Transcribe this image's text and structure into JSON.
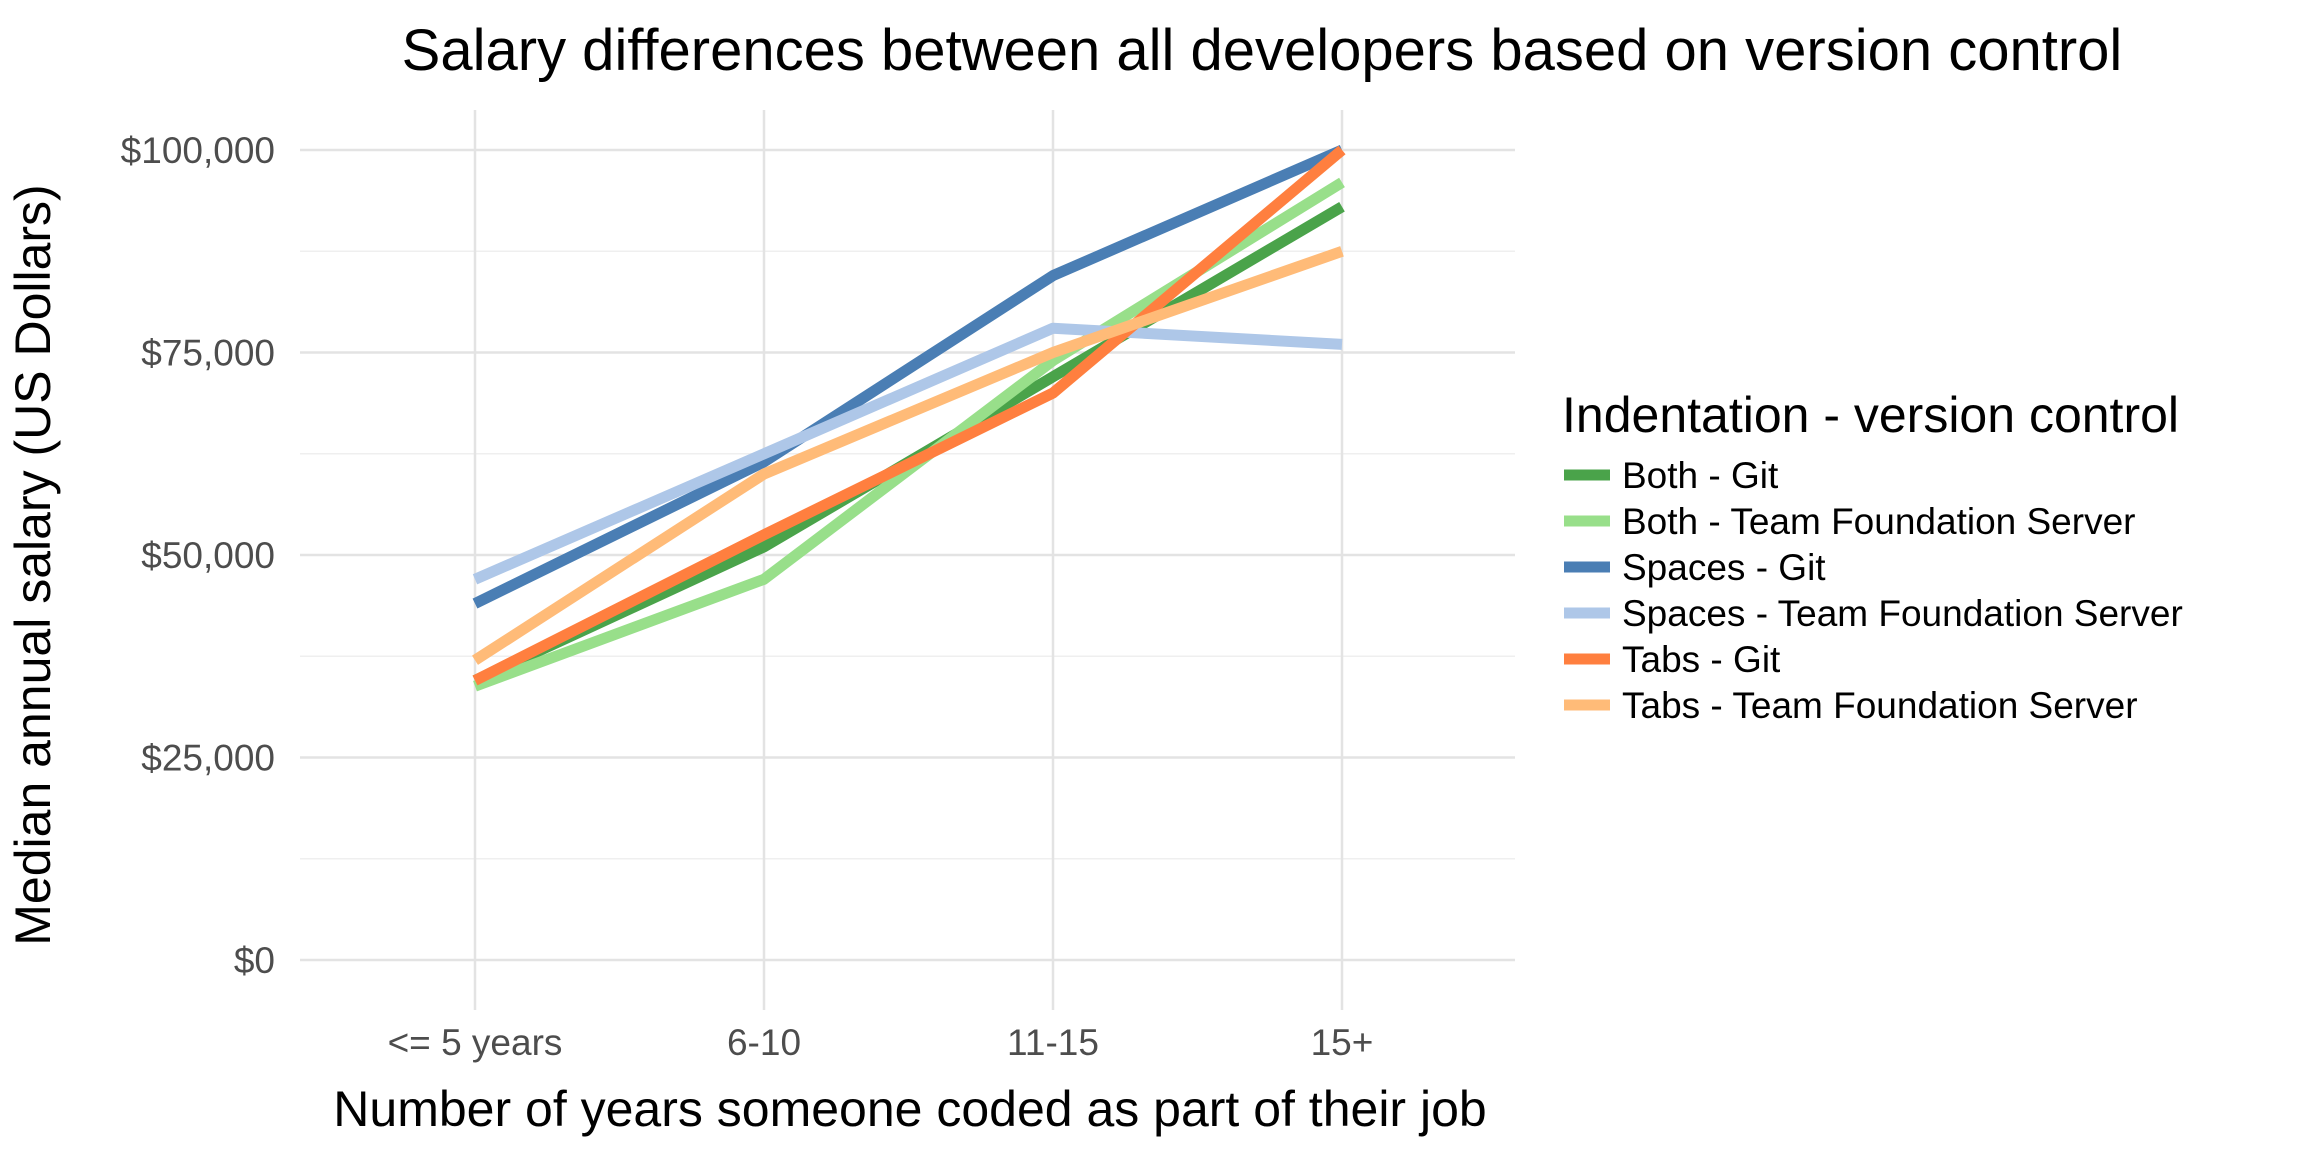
{
  "chart_data": {
    "type": "line",
    "title": "Salary differences between all developers based on version control",
    "xlabel": "Number of years someone coded as part of their job",
    "ylabel": "Median annual salary (US Dollars)",
    "categories": [
      "<= 5 years",
      "6-10",
      "11-15",
      "15+"
    ],
    "ylim": [
      0,
      100000
    ],
    "yticks": [
      0,
      25000,
      50000,
      75000,
      100000
    ],
    "ytick_labels": [
      "$0",
      "$25,000",
      "$50,000",
      "$75,000",
      "$100,000"
    ],
    "grid": true,
    "legend": {
      "title": "Indentation - version control",
      "position": "right"
    },
    "series": [
      {
        "name": "Both - Git",
        "color": "#4aa34a",
        "values": [
          34500,
          51000,
          72000,
          93000
        ]
      },
      {
        "name": "Both - Team Foundation Server",
        "color": "#98df8a",
        "values": [
          33800,
          47000,
          74000,
          96000
        ]
      },
      {
        "name": "Spaces - Git",
        "color": "#4a7eb4",
        "values": [
          44000,
          61500,
          84500,
          100000
        ]
      },
      {
        "name": "Spaces - Team Foundation Server",
        "color": "#aec7e8",
        "values": [
          47000,
          62500,
          78000,
          76000
        ]
      },
      {
        "name": "Tabs - Git",
        "color": "#ff7f3f",
        "values": [
          34500,
          52500,
          70000,
          100000
        ]
      },
      {
        "name": "Tabs - Team Foundation Server",
        "color": "#ffbb78",
        "values": [
          37000,
          60000,
          75000,
          87500
        ]
      }
    ]
  }
}
